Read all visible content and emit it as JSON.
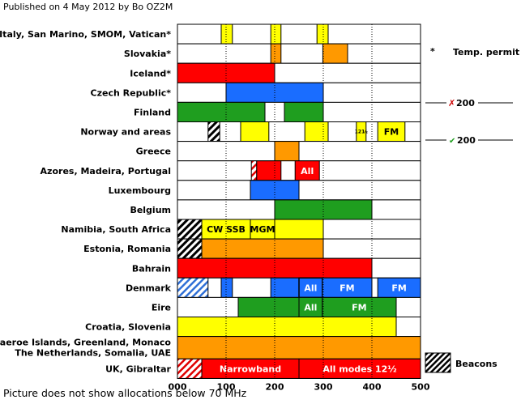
{
  "header": "Published on 4 May 2012 by Bo OZ2M",
  "footer": "Picture does not show allocations below 70 MHz",
  "side": {
    "star": "*",
    "temp_permit": "Temp. permit",
    "x_mark": "✗",
    "check_mark": "✔",
    "limit_x": "200",
    "limit_check": "200",
    "beacons": "Beacons"
  },
  "colors": {
    "yellow": "#ffff00",
    "orange": "#ff9900",
    "red": "#ff0000",
    "blue": "#1a6dff",
    "green": "#1f9e1f",
    "hatch_black": "#000000",
    "hatch_blue": "#2f6fd6",
    "hatch_red": "#e00000",
    "grid": "#000000"
  },
  "chart_data": {
    "type": "bar",
    "orientation": "horizontal",
    "xlim": [
      0,
      500
    ],
    "xticks": [
      "000",
      "100",
      "200",
      "300",
      "400",
      "500"
    ],
    "xtick_values": [
      0,
      100,
      200,
      300,
      400,
      500
    ],
    "grid": "dotted vertical at 100,200,300,400",
    "rows": [
      {
        "label": "Italy, San Marino, SMOM, Vatican*",
        "segments": [
          {
            "from": 90,
            "to": 113,
            "color": "yellow"
          },
          {
            "from": 192,
            "to": 213,
            "color": "yellow"
          },
          {
            "from": 287,
            "to": 310,
            "color": "yellow"
          }
        ]
      },
      {
        "label": "Slovakia*",
        "segments": [
          {
            "from": 192,
            "to": 213,
            "color": "orange"
          },
          {
            "from": 299,
            "to": 350,
            "color": "orange"
          }
        ]
      },
      {
        "label": "Iceland*",
        "segments": [
          {
            "from": 0,
            "to": 200,
            "color": "red"
          }
        ]
      },
      {
        "label": "Czech Republic*",
        "segments": [
          {
            "from": 100,
            "to": 300,
            "color": "blue"
          }
        ]
      },
      {
        "label": "Finland",
        "segments": [
          {
            "from": 0,
            "to": 180,
            "color": "green"
          },
          {
            "from": 220,
            "to": 300,
            "color": "green"
          }
        ]
      },
      {
        "label": "Norway and areas",
        "segments": [
          {
            "from": 63,
            "to": 87,
            "color": "hatch_black"
          },
          {
            "from": 130,
            "to": 188,
            "color": "yellow"
          },
          {
            "from": 262,
            "to": 310,
            "color": "yellow"
          },
          {
            "from": 368,
            "to": 388,
            "color": "yellow",
            "text": "121⁄₂"
          },
          {
            "from": 412,
            "to": 468,
            "color": "yellow",
            "text": "FM"
          }
        ]
      },
      {
        "label": "Greece",
        "segments": [
          {
            "from": 200,
            "to": 250,
            "color": "orange"
          }
        ]
      },
      {
        "label": "Azores, Madeira, Portugal",
        "segments": [
          {
            "from": 152,
            "to": 163,
            "color": "hatch_red"
          },
          {
            "from": 163,
            "to": 213,
            "color": "red"
          },
          {
            "from": 242,
            "to": 292,
            "color": "red",
            "text": "All"
          }
        ]
      },
      {
        "label": "Luxembourg",
        "segments": [
          {
            "from": 150,
            "to": 250,
            "color": "blue"
          }
        ]
      },
      {
        "label": "Belgium",
        "segments": [
          {
            "from": 200,
            "to": 400,
            "color": "green"
          }
        ]
      },
      {
        "label": "Namibia, South Africa",
        "segments": [
          {
            "from": 0,
            "to": 50,
            "color": "hatch_black"
          },
          {
            "from": 50,
            "to": 150,
            "color": "yellow",
            "text": "CW SSB"
          },
          {
            "from": 150,
            "to": 200,
            "color": "yellow",
            "text": "MGM"
          },
          {
            "from": 200,
            "to": 300,
            "color": "yellow"
          }
        ]
      },
      {
        "label": "Estonia, Romania",
        "segments": [
          {
            "from": 0,
            "to": 50,
            "color": "hatch_black"
          },
          {
            "from": 50,
            "to": 300,
            "color": "orange"
          }
        ]
      },
      {
        "label": "Bahrain",
        "segments": [
          {
            "from": 0,
            "to": 400,
            "color": "red"
          }
        ]
      },
      {
        "label": "Denmark",
        "segments": [
          {
            "from": 0,
            "to": 63,
            "color": "hatch_blue"
          },
          {
            "from": 90,
            "to": 113,
            "color": "blue"
          },
          {
            "from": 192,
            "to": 300,
            "color": "blue"
          },
          {
            "from": 250,
            "to": 298,
            "color": "blue",
            "text": "All",
            "outline": true
          },
          {
            "from": 298,
            "to": 400,
            "color": "blue",
            "text": "FM"
          },
          {
            "from": 412,
            "to": 500,
            "color": "blue",
            "text": "FM"
          }
        ]
      },
      {
        "label": "Eire",
        "segments": [
          {
            "from": 125,
            "to": 250,
            "color": "green"
          },
          {
            "from": 250,
            "to": 298,
            "color": "green",
            "text": "All"
          },
          {
            "from": 298,
            "to": 450,
            "color": "green",
            "text": "FM"
          }
        ]
      },
      {
        "label": "Croatia, Slovenia",
        "segments": [
          {
            "from": 0,
            "to": 450,
            "color": "yellow"
          }
        ]
      },
      {
        "label": "Faeroe Islands, Greenland, Monaco\nThe Netherlands, Somalia, UAE",
        "double": true,
        "segments": [
          {
            "from": 0,
            "to": 500,
            "color": "orange"
          }
        ]
      },
      {
        "label": "UK, Gibraltar",
        "segments": [
          {
            "from": 0,
            "to": 50,
            "color": "hatch_red"
          },
          {
            "from": 50,
            "to": 250,
            "color": "red",
            "text": "Narrowband"
          },
          {
            "from": 250,
            "to": 500,
            "color": "red",
            "text": "All modes 12½"
          }
        ]
      }
    ]
  }
}
